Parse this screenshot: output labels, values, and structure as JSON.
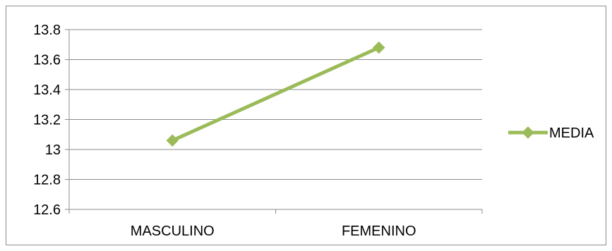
{
  "chart_data": {
    "type": "line",
    "categories": [
      "MASCULINO",
      "FEMENINO"
    ],
    "series": [
      {
        "name": "MEDIA",
        "values": [
          13.06,
          13.68
        ],
        "color": "#9BBB59",
        "marker": "diamond"
      }
    ],
    "ylim": [
      12.6,
      13.8
    ],
    "yticks": [
      "12.6",
      "12.8",
      "13",
      "13.2",
      "13.4",
      "13.6",
      "13.8"
    ],
    "grid": true,
    "legend": "right",
    "title": "",
    "xlabel": "",
    "ylabel": ""
  }
}
